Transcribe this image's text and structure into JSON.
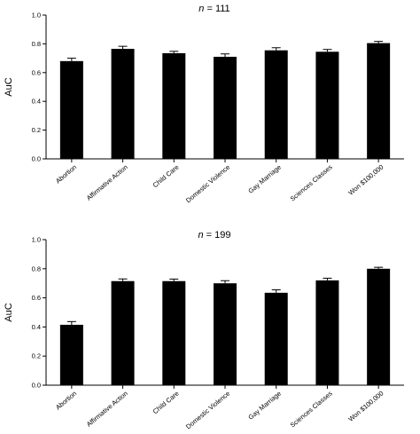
{
  "chart_data": [
    {
      "type": "bar",
      "title_prefix": "n",
      "title_suffix": " = 111",
      "ylabel": "AuC",
      "ylim": [
        0,
        1.0
      ],
      "yticks": [
        "0.0",
        "0.2",
        "0.4",
        "0.6",
        "0.8",
        "1.0"
      ],
      "categories": [
        "Abortion",
        "Affirmative Action",
        "Child Care",
        "Domestic Violence",
        "Gay Marriage",
        "Sciences Classes",
        "Won $100,000"
      ],
      "values": [
        0.68,
        0.765,
        0.735,
        0.71,
        0.755,
        0.745,
        0.805
      ],
      "errors": [
        0.02,
        0.018,
        0.013,
        0.02,
        0.018,
        0.016,
        0.012
      ]
    },
    {
      "type": "bar",
      "title_prefix": "n",
      "title_suffix": " = 199",
      "ylabel": "AuC",
      "ylim": [
        0,
        1.0
      ],
      "yticks": [
        "0.0",
        "0.2",
        "0.4",
        "0.6",
        "0.8",
        "1.0"
      ],
      "categories": [
        "Abortion",
        "Affirmative Action",
        "Child Care",
        "Domestic Violence",
        "Gay Marriage",
        "Sciences Classes",
        "Won $100,000"
      ],
      "values": [
        0.415,
        0.715,
        0.715,
        0.7,
        0.635,
        0.72,
        0.8
      ],
      "errors": [
        0.022,
        0.015,
        0.014,
        0.018,
        0.02,
        0.015,
        0.01
      ]
    }
  ]
}
